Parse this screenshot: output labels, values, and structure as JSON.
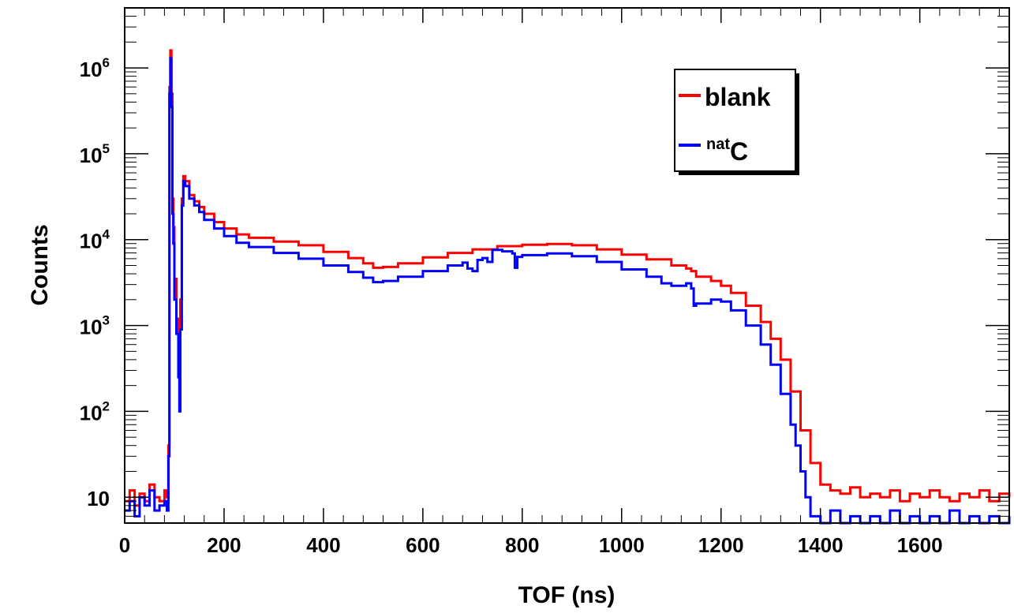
{
  "chart_data": {
    "type": "line",
    "title": "",
    "xlabel": "TOF (ns)",
    "ylabel": "Counts",
    "xlim": [
      0,
      1780
    ],
    "ylim": [
      5,
      5000000
    ],
    "yscale": "log",
    "grid": false,
    "legend_position": "top-right",
    "x_ticks": [
      0,
      200,
      400,
      600,
      800,
      1000,
      1200,
      1400,
      1600
    ],
    "x_tick_labels": [
      "0",
      "200",
      "400",
      "600",
      "800",
      "1000",
      "1200",
      "1400",
      "1600"
    ],
    "y_ticks": [
      {
        "value": 10,
        "base": "10",
        "exp": ""
      },
      {
        "value": 100,
        "base": "10",
        "exp": "2"
      },
      {
        "value": 1000,
        "base": "10",
        "exp": "3"
      },
      {
        "value": 10000,
        "base": "10",
        "exp": "4"
      },
      {
        "value": 100000,
        "base": "10",
        "exp": "5"
      },
      {
        "value": 1000000,
        "base": "10",
        "exp": "6"
      }
    ],
    "series": [
      {
        "name": "blank",
        "legend_main": "blank",
        "legend_sup": "",
        "color": "#ff0000",
        "points": [
          [
            0,
            9
          ],
          [
            10,
            12
          ],
          [
            20,
            8
          ],
          [
            30,
            11
          ],
          [
            40,
            9
          ],
          [
            50,
            14
          ],
          [
            60,
            10
          ],
          [
            70,
            9
          ],
          [
            80,
            12
          ],
          [
            85,
            10
          ],
          [
            88,
            40
          ],
          [
            90,
            600000
          ],
          [
            92,
            1600000
          ],
          [
            94,
            500000
          ],
          [
            96,
            30000
          ],
          [
            98,
            14000
          ],
          [
            100,
            3500
          ],
          [
            104,
            1200
          ],
          [
            108,
            450
          ],
          [
            110,
            300
          ],
          [
            112,
            2000
          ],
          [
            115,
            30000
          ],
          [
            118,
            55000
          ],
          [
            122,
            48000
          ],
          [
            130,
            33000
          ],
          [
            140,
            28000
          ],
          [
            150,
            24000
          ],
          [
            160,
            20000
          ],
          [
            180,
            16000
          ],
          [
            200,
            13500
          ],
          [
            225,
            11500
          ],
          [
            250,
            10500
          ],
          [
            300,
            9500
          ],
          [
            350,
            8600
          ],
          [
            400,
            7200
          ],
          [
            450,
            6100
          ],
          [
            480,
            5300
          ],
          [
            500,
            4700
          ],
          [
            520,
            4800
          ],
          [
            550,
            5300
          ],
          [
            600,
            6200
          ],
          [
            650,
            7000
          ],
          [
            700,
            7700
          ],
          [
            750,
            8400
          ],
          [
            800,
            8700
          ],
          [
            850,
            8900
          ],
          [
            900,
            8600
          ],
          [
            950,
            7700
          ],
          [
            1000,
            6700
          ],
          [
            1050,
            5900
          ],
          [
            1100,
            5000
          ],
          [
            1130,
            4600
          ],
          [
            1140,
            4300
          ],
          [
            1150,
            3700
          ],
          [
            1180,
            3300
          ],
          [
            1200,
            2900
          ],
          [
            1220,
            2400
          ],
          [
            1250,
            1700
          ],
          [
            1280,
            1100
          ],
          [
            1300,
            700
          ],
          [
            1320,
            400
          ],
          [
            1340,
            170
          ],
          [
            1360,
            60
          ],
          [
            1380,
            25
          ],
          [
            1400,
            14
          ],
          [
            1420,
            12
          ],
          [
            1440,
            11
          ],
          [
            1460,
            13
          ],
          [
            1480,
            10
          ],
          [
            1500,
            11
          ],
          [
            1520,
            10
          ],
          [
            1540,
            12
          ],
          [
            1560,
            9
          ],
          [
            1580,
            11
          ],
          [
            1600,
            10
          ],
          [
            1620,
            12
          ],
          [
            1640,
            10
          ],
          [
            1660,
            9
          ],
          [
            1680,
            11
          ],
          [
            1700,
            10
          ],
          [
            1720,
            12
          ],
          [
            1740,
            9
          ],
          [
            1760,
            11
          ],
          [
            1780,
            10
          ]
        ]
      },
      {
        "name": "natC",
        "legend_main": "C",
        "legend_sup": "nat",
        "color": "#0000ff",
        "points": [
          [
            0,
            7
          ],
          [
            10,
            9
          ],
          [
            20,
            6
          ],
          [
            30,
            10
          ],
          [
            40,
            8
          ],
          [
            50,
            12
          ],
          [
            60,
            7
          ],
          [
            70,
            8
          ],
          [
            80,
            9
          ],
          [
            85,
            7
          ],
          [
            88,
            30
          ],
          [
            90,
            500000
          ],
          [
            92,
            1300000
          ],
          [
            94,
            350000
          ],
          [
            96,
            20000
          ],
          [
            98,
            9000
          ],
          [
            100,
            2000
          ],
          [
            104,
            800
          ],
          [
            108,
            250
          ],
          [
            110,
            100
          ],
          [
            112,
            900
          ],
          [
            115,
            25000
          ],
          [
            118,
            48000
          ],
          [
            122,
            42000
          ],
          [
            130,
            30000
          ],
          [
            140,
            25000
          ],
          [
            150,
            21000
          ],
          [
            160,
            17000
          ],
          [
            180,
            13500
          ],
          [
            200,
            11000
          ],
          [
            225,
            9200
          ],
          [
            250,
            8200
          ],
          [
            300,
            7000
          ],
          [
            350,
            6000
          ],
          [
            400,
            5000
          ],
          [
            450,
            4200
          ],
          [
            480,
            3600
          ],
          [
            500,
            3200
          ],
          [
            520,
            3300
          ],
          [
            550,
            3700
          ],
          [
            600,
            4300
          ],
          [
            650,
            5000
          ],
          [
            680,
            5400
          ],
          [
            690,
            4600
          ],
          [
            700,
            4300
          ],
          [
            710,
            5800
          ],
          [
            720,
            6100
          ],
          [
            730,
            5500
          ],
          [
            740,
            7600
          ],
          [
            760,
            7300
          ],
          [
            780,
            6900
          ],
          [
            785,
            4700
          ],
          [
            790,
            6300
          ],
          [
            800,
            6600
          ],
          [
            850,
            6900
          ],
          [
            900,
            6400
          ],
          [
            950,
            5500
          ],
          [
            1000,
            4500
          ],
          [
            1050,
            3700
          ],
          [
            1080,
            3100
          ],
          [
            1100,
            2900
          ],
          [
            1130,
            3100
          ],
          [
            1140,
            2700
          ],
          [
            1145,
            1700
          ],
          [
            1150,
            1800
          ],
          [
            1180,
            2000
          ],
          [
            1200,
            1900
          ],
          [
            1220,
            1500
          ],
          [
            1250,
            1000
          ],
          [
            1280,
            600
          ],
          [
            1300,
            350
          ],
          [
            1320,
            160
          ],
          [
            1340,
            70
          ],
          [
            1350,
            40
          ],
          [
            1360,
            20
          ],
          [
            1370,
            10
          ],
          [
            1380,
            6
          ],
          [
            1400,
            5
          ],
          [
            1420,
            7
          ],
          [
            1440,
            5
          ],
          [
            1460,
            6
          ],
          [
            1480,
            5
          ],
          [
            1500,
            6
          ],
          [
            1520,
            5
          ],
          [
            1540,
            7
          ],
          [
            1560,
            5
          ],
          [
            1580,
            6
          ],
          [
            1600,
            5
          ],
          [
            1620,
            6
          ],
          [
            1640,
            5
          ],
          [
            1660,
            7
          ],
          [
            1680,
            5
          ],
          [
            1700,
            6
          ],
          [
            1720,
            5
          ],
          [
            1740,
            6
          ],
          [
            1760,
            5
          ],
          [
            1780,
            6
          ]
        ]
      }
    ]
  }
}
